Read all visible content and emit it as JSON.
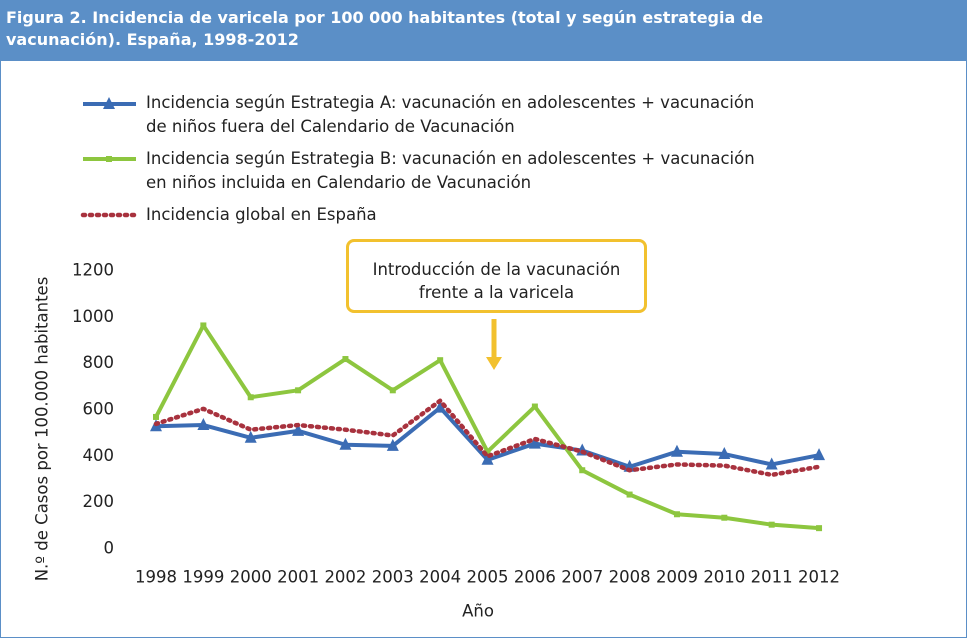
{
  "chart_data": {
    "type": "line",
    "title": "Figura 2.  Incidencia de varicela por 100 000 habitantes (total y según estrategia de vacunación). España, 1998-2012",
    "y_label": "N.º de Casos por 100.000 habitantes",
    "x_label": "Año",
    "annotation": "Introducción de la vacunación frente a la varicela",
    "categories": [
      "1998",
      "1999",
      "2000",
      "2001",
      "2002",
      "2003",
      "2004",
      "2005",
      "2006",
      "2007",
      "2008",
      "2009",
      "2010",
      "2011",
      "2012"
    ],
    "series": [
      {
        "name": "Incidencia según Estrategia A: vacunación en adolescentes + vacunación de niños fuera del Calendario de Vacunación",
        "color": "#3b6cb4",
        "marker": "triangle",
        "dash": "solid",
        "values": [
          530,
          535,
          480,
          510,
          450,
          445,
          610,
          385,
          455,
          425,
          355,
          420,
          410,
          365,
          405
        ]
      },
      {
        "name": "Incidencia según Estrategia B: vacunación en adolescentes + vacunación en niños incluida en Calendario de Vacunación",
        "color": "#8dc63f",
        "marker": "square",
        "dash": "solid",
        "values": [
          570,
          965,
          655,
          685,
          820,
          685,
          815,
          420,
          615,
          340,
          235,
          150,
          135,
          105,
          90
        ]
      },
      {
        "name": "Incidencia global en España",
        "color": "#a8323e",
        "marker": "none",
        "dash": "dotted",
        "values": [
          540,
          605,
          515,
          535,
          515,
          490,
          640,
          400,
          475,
          420,
          340,
          365,
          360,
          320,
          355
        ]
      }
    ],
    "ylim": [
      0,
      1200
    ],
    "yticks": [
      0,
      200,
      400,
      600,
      800,
      1000,
      1200
    ],
    "grid": false
  }
}
